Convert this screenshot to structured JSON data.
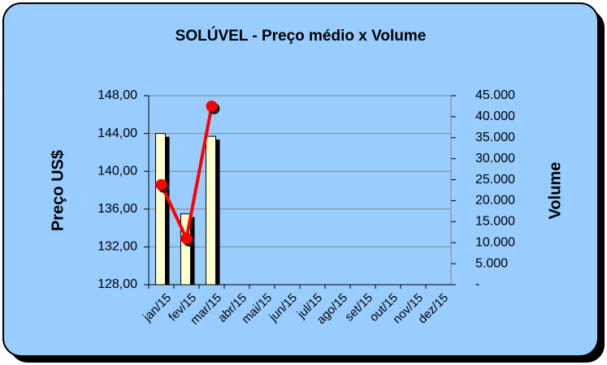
{
  "chart_data": {
    "type": "bar_line",
    "title": "SOLÚVEL - Preço médio x Volume",
    "ylabel": "Preço US$",
    "y2label": "Volume",
    "categories": [
      "jan/15",
      "fev/15",
      "mar/15",
      "abr/15",
      "mai/15",
      "jun/15",
      "jul/15",
      "ago/15",
      "set/15",
      "out/15",
      "nov/15",
      "dez/15"
    ],
    "series": [
      {
        "type": "bar",
        "color": "#ffffcc",
        "values": [
          144.0,
          135.5,
          143.7,
          null,
          null,
          null,
          null,
          null,
          null,
          null,
          null,
          null
        ]
      },
      {
        "type": "line",
        "axis": "y2",
        "color": "#ff0000",
        "values": [
          23800,
          11000,
          42500,
          null,
          null,
          null,
          null,
          null,
          null,
          null,
          null,
          null
        ]
      }
    ],
    "ylim": [
      128,
      148
    ],
    "yticks": [
      {
        "value": 128,
        "label": "128,00"
      },
      {
        "value": 132,
        "label": "132,00"
      },
      {
        "value": 136,
        "label": "136,00"
      },
      {
        "value": 140,
        "label": "140,00"
      },
      {
        "value": 144,
        "label": "144,00"
      },
      {
        "value": 148,
        "label": "148,00"
      }
    ],
    "y2lim": [
      0,
      45000
    ],
    "y2ticks": [
      {
        "value": 0,
        "label": "-"
      },
      {
        "value": 5000,
        "label": "5.000"
      },
      {
        "value": 10000,
        "label": "10.000"
      },
      {
        "value": 15000,
        "label": "15.000"
      },
      {
        "value": 20000,
        "label": "20.000"
      },
      {
        "value": 25000,
        "label": "25.000"
      },
      {
        "value": 30000,
        "label": "30.000"
      },
      {
        "value": 35000,
        "label": "35.000"
      },
      {
        "value": 40000,
        "label": "40.000"
      },
      {
        "value": 45000,
        "label": "45.000"
      }
    ],
    "grid": true
  }
}
